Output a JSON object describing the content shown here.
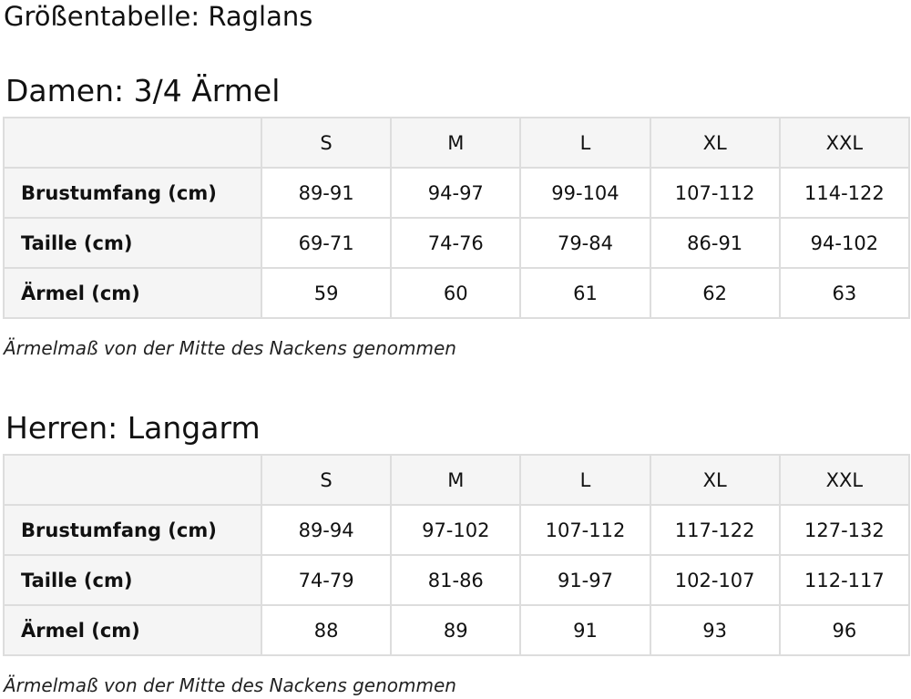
{
  "title": "Größentabelle: Raglans",
  "sections": [
    {
      "heading": "Damen: 3/4 Ärmel",
      "sizes": [
        "S",
        "M",
        "L",
        "XL",
        "XXL"
      ],
      "rows": [
        {
          "label": "Brustumfang (cm)",
          "values": [
            "89-91",
            "94-97",
            "99-104",
            "107-112",
            "114-122"
          ]
        },
        {
          "label": "Taille (cm)",
          "values": [
            "69-71",
            "74-76",
            "79-84",
            "86-91",
            "94-102"
          ]
        },
        {
          "label": "Ärmel (cm)",
          "values": [
            "59",
            "60",
            "61",
            "62",
            "63"
          ]
        }
      ],
      "note": "Ärmelmaß von der Mitte des Nackens genommen"
    },
    {
      "heading": "Herren: Langarm",
      "sizes": [
        "S",
        "M",
        "L",
        "XL",
        "XXL"
      ],
      "rows": [
        {
          "label": "Brustumfang (cm)",
          "values": [
            "89-94",
            "97-102",
            "107-112",
            "117-122",
            "127-132"
          ]
        },
        {
          "label": "Taille (cm)",
          "values": [
            "74-79",
            "81-86",
            "91-97",
            "102-107",
            "112-117"
          ]
        },
        {
          "label": "Ärmel (cm)",
          "values": [
            "88",
            "89",
            "91",
            "93",
            "96"
          ]
        }
      ],
      "note": "Ärmelmaß von der Mitte des Nackens genommen"
    }
  ]
}
